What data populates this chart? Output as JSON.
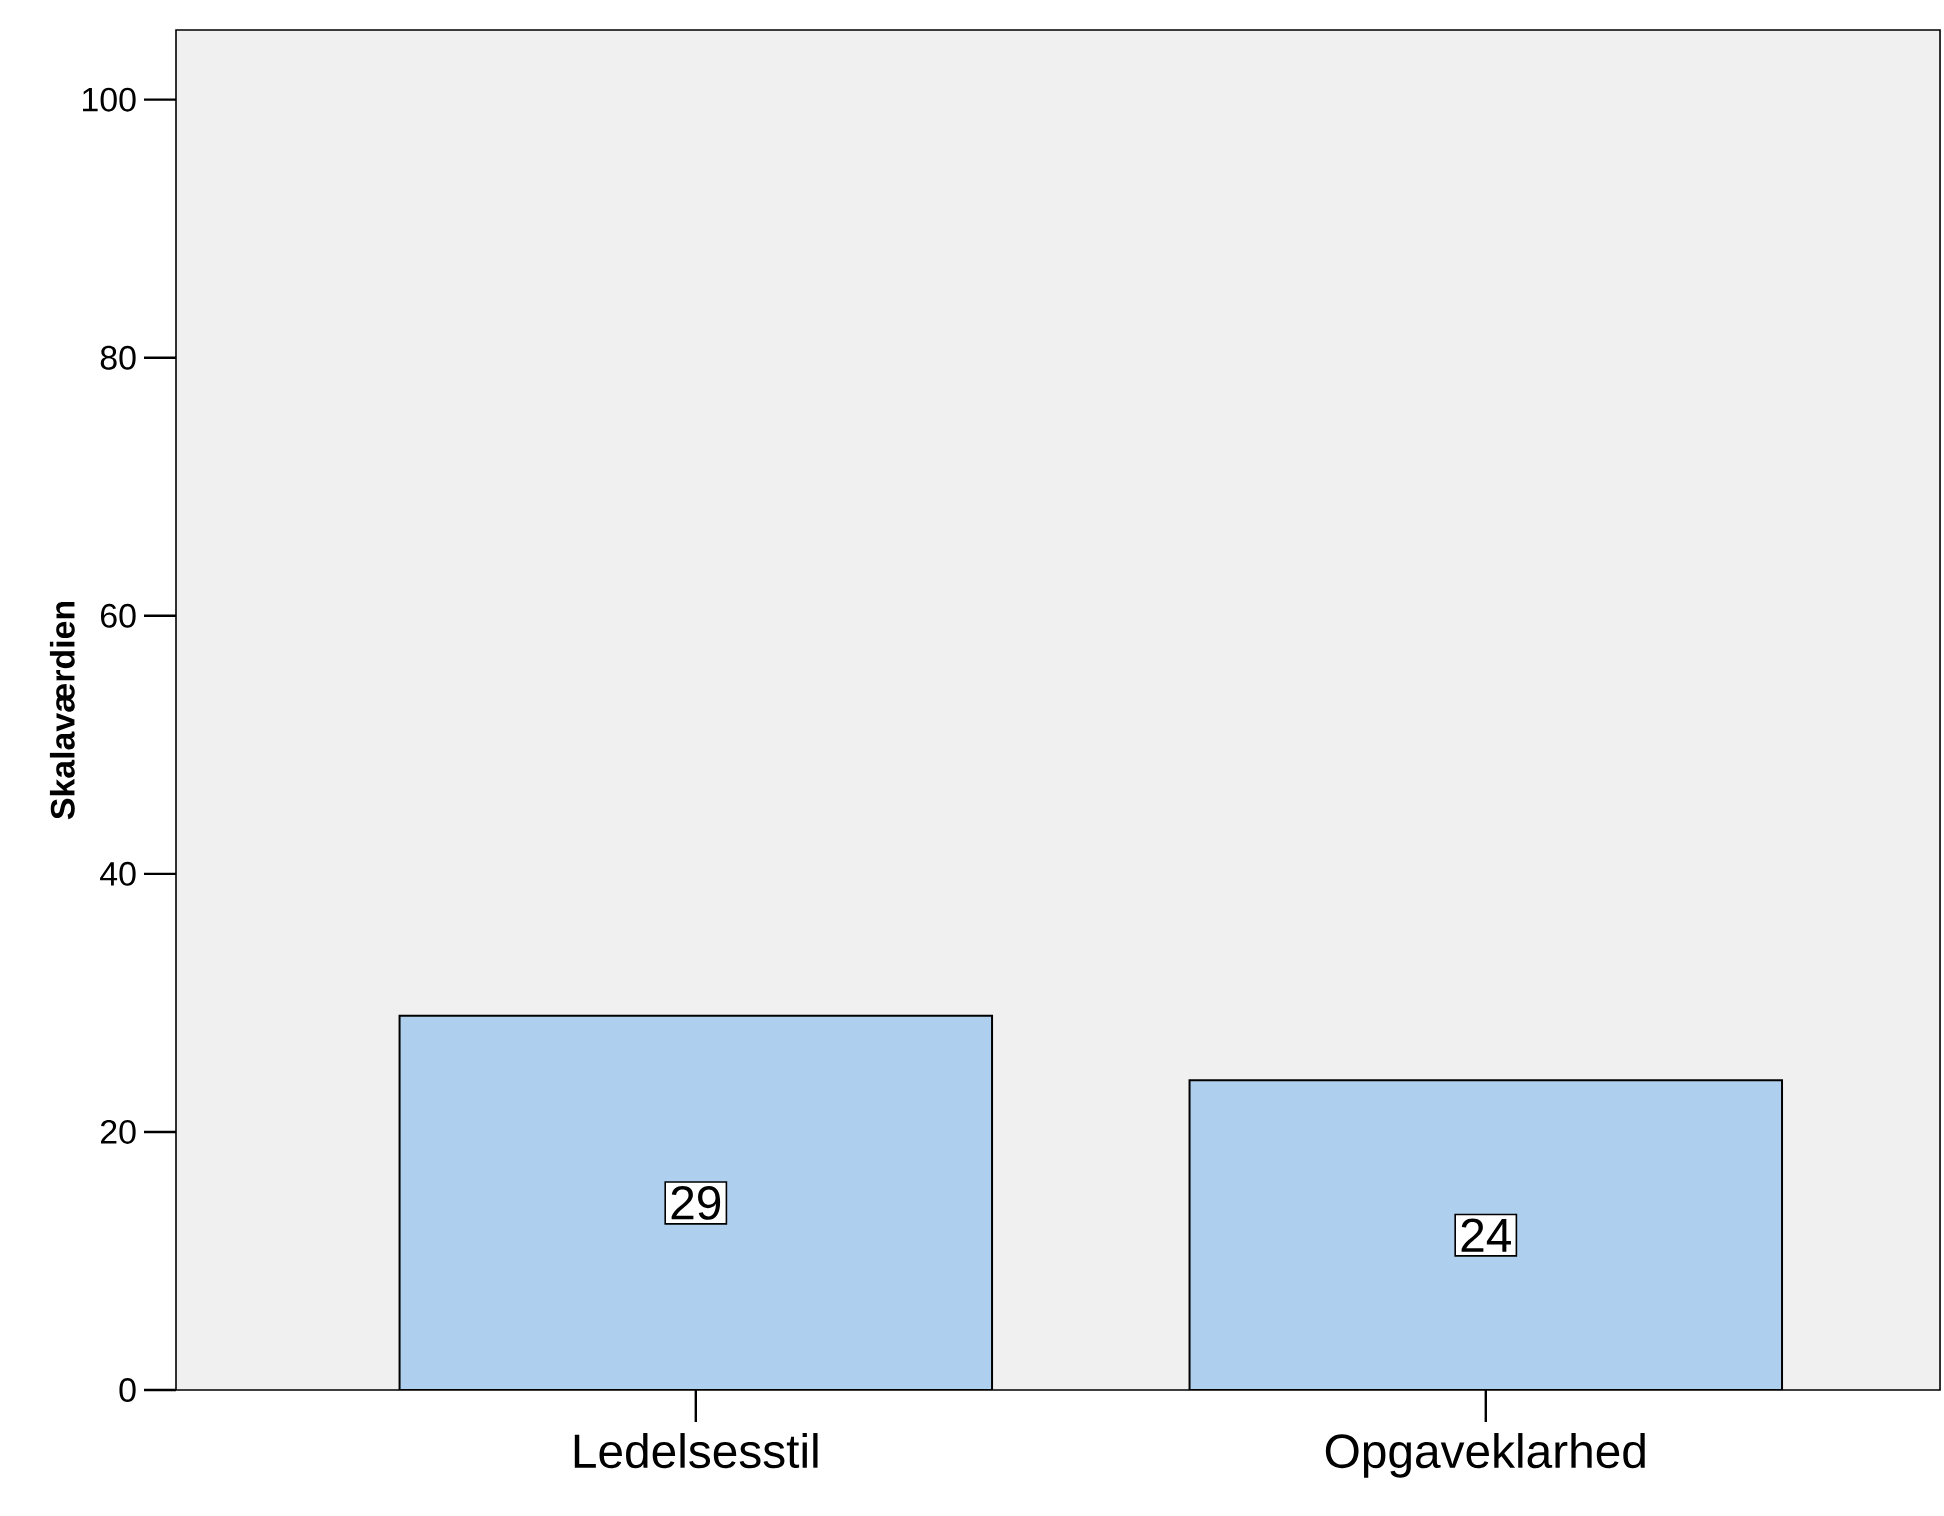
{
  "chart_data": {
    "type": "bar",
    "ylabel": "Skalaværdien",
    "categories": [
      "Ledelsesstil",
      "Opgaveklarhed"
    ],
    "values": [
      29,
      24
    ],
    "color": "#aed0ee",
    "ylim": [
      0,
      105.4
    ],
    "yticks": [
      0,
      20,
      40,
      60,
      80,
      100
    ],
    "data_labels": true,
    "grid": false
  }
}
